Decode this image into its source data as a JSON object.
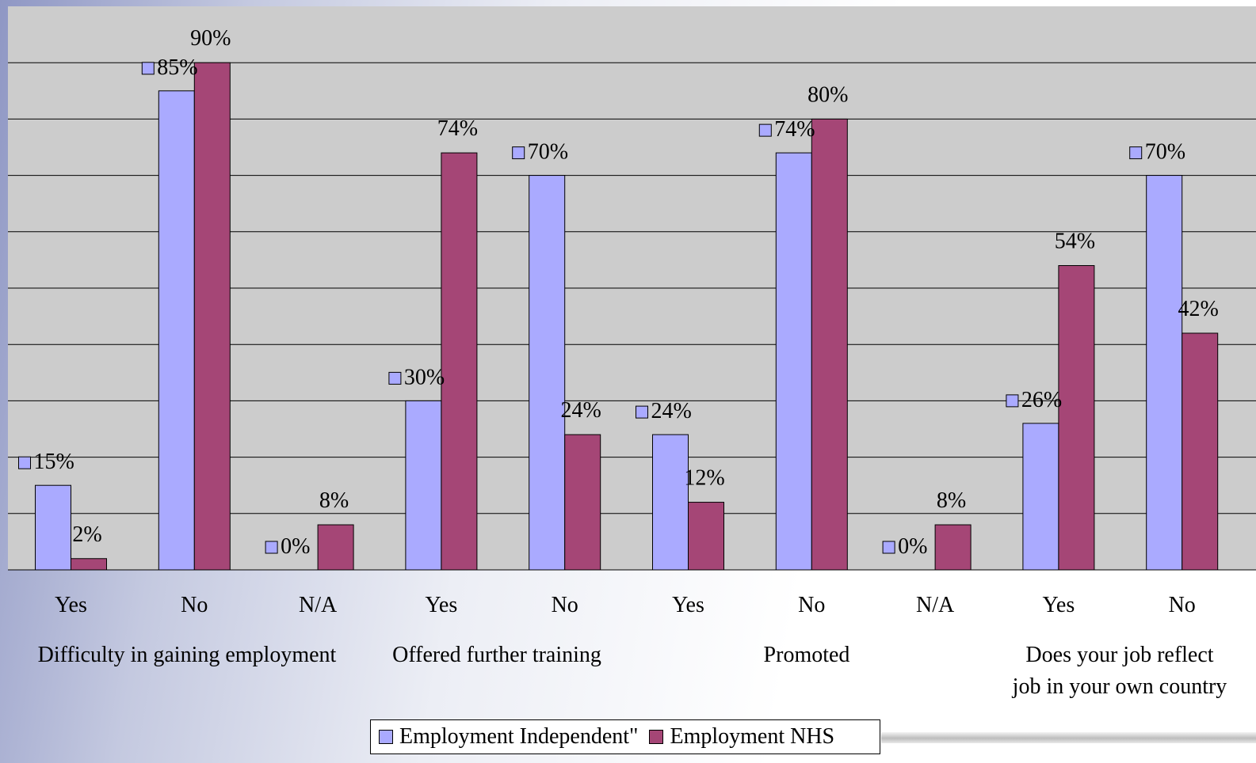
{
  "chart_data": {
    "type": "bar",
    "ylim": [
      0,
      90
    ],
    "grid": true,
    "legend_position": "bottom",
    "categories": [
      "Yes",
      "No",
      "N/A",
      "Yes",
      "No",
      "Yes",
      "No",
      "N/A",
      "Yes",
      "No"
    ],
    "groups": [
      {
        "label": "Difficulty in gaining employment",
        "lines": [
          "Difficulty in gaining employment"
        ]
      },
      {
        "label": "Offered further training",
        "lines": [
          "Offered further training"
        ]
      },
      {
        "label": "Promoted",
        "lines": [
          "Promoted"
        ]
      },
      {
        "label": "Does your job reflect job in your own country",
        "lines": [
          "Does your job reflect",
          "job in your own country"
        ]
      }
    ],
    "series": [
      {
        "name": "Employment  Independent\"",
        "color": "#aaaaff",
        "values": [
          15,
          85,
          0,
          30,
          70,
          24,
          74,
          0,
          26,
          70
        ],
        "labels": [
          "15%",
          "85%",
          "0%",
          "30%",
          "70%",
          "24%",
          "74%",
          "0%",
          "26%",
          "70%"
        ]
      },
      {
        "name": "Employment NHS",
        "color": "#a54676",
        "values": [
          2,
          90,
          8,
          74,
          24,
          12,
          80,
          8,
          54,
          42
        ],
        "labels": [
          "2%",
          "90%",
          "8%",
          "74%",
          "24%",
          "12%",
          "80%",
          "8%",
          "54%",
          "42%"
        ]
      }
    ]
  },
  "colors": {
    "plot_background": "#cccccc",
    "gridline": "#000000"
  }
}
